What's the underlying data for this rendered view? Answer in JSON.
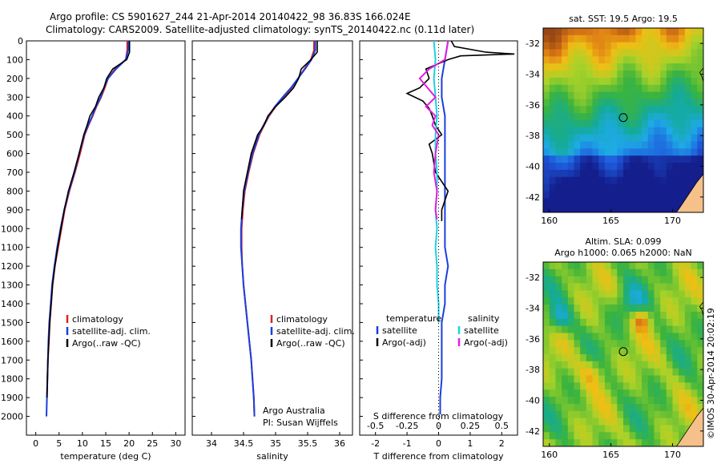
{
  "header": {
    "line1": "Argo profile: CS 5901627_244 21-Apr-2014 20140422_98 36.83S 166.024E",
    "line2": "Climatology: CARS2009. Satellite-adjusted climatology: synTS_20140422.nc (0.11d later)"
  },
  "colors": {
    "climatology": "#e02020",
    "satellite": "#1a3fe0",
    "argo": "#000000",
    "sat_salinity": "#20d0e0",
    "argo_adj_salinity": "#e020e0"
  },
  "chart_data": [
    {
      "type": "line",
      "name": "temperature-profile",
      "xlabel": "temperature (deg C)",
      "ylabel": "",
      "xlim": [
        -2,
        32
      ],
      "ylim": [
        0,
        2100
      ],
      "y_inverted": true,
      "xticks": [
        "0",
        "5",
        "10",
        "15",
        "20",
        "25",
        "30"
      ],
      "yticks": [
        "0",
        "100",
        "200",
        "300",
        "400",
        "500",
        "600",
        "700",
        "800",
        "900",
        "1000",
        "1100",
        "1200",
        "1300",
        "1400",
        "1500",
        "1600",
        "1700",
        "1800",
        "1900",
        "2000"
      ],
      "legend": [
        "climatology",
        "satellite-adj. clim.",
        "Argo(..raw -QC)"
      ],
      "series": [
        {
          "key": "climatology",
          "x": [
            19.6,
            19.6,
            19.3,
            17,
            15.5,
            14.8,
            14,
            13,
            12.2,
            11.3,
            10.5,
            9.5,
            8.4,
            7.2,
            6.2,
            5.5,
            4.8,
            4.1,
            3.6,
            3.3,
            3.0,
            2.8,
            2.6,
            2.5,
            2.4
          ],
          "y": [
            0,
            50,
            100,
            150,
            200,
            250,
            300,
            350,
            400,
            450,
            500,
            600,
            700,
            800,
            900,
            1000,
            1100,
            1200,
            1300,
            1400,
            1500,
            1600,
            1700,
            1800,
            1900
          ]
        },
        {
          "key": "satellite",
          "x": [
            19.9,
            19.8,
            19.3,
            17.2,
            15.5,
            14.6,
            13.9,
            12.9,
            12.1,
            11.2,
            10.4,
            9.3,
            8.3,
            7.1,
            6.1,
            5.3,
            4.6,
            4.0,
            3.5,
            3.2,
            2.9,
            2.7,
            2.6,
            2.5,
            2.4,
            2.3
          ],
          "y": [
            0,
            50,
            100,
            150,
            200,
            250,
            300,
            350,
            400,
            450,
            500,
            600,
            700,
            800,
            900,
            1000,
            1100,
            1200,
            1300,
            1400,
            1500,
            1600,
            1700,
            1800,
            1900,
            2000
          ]
        },
        {
          "key": "argo",
          "x": [
            20.1,
            20.1,
            19.5,
            16.5,
            15.2,
            14.6,
            13.5,
            12.8,
            11.6,
            11.0,
            10.3,
            9.3,
            8.2,
            7.0,
            6.1,
            5.4,
            4.7,
            4.1,
            3.6,
            3.3,
            3.0,
            2.8,
            2.6,
            2.5,
            2.4
          ],
          "y": [
            0,
            60,
            100,
            150,
            200,
            250,
            300,
            350,
            400,
            450,
            500,
            600,
            700,
            800,
            900,
            1000,
            1100,
            1200,
            1300,
            1400,
            1500,
            1600,
            1700,
            1800,
            1900
          ]
        }
      ]
    },
    {
      "type": "line",
      "name": "salinity-profile",
      "xlabel": "salinity",
      "ylabel": "",
      "xlim": [
        33.7,
        36.2
      ],
      "ylim": [
        0,
        2100
      ],
      "y_inverted": true,
      "xticks": [
        "34",
        "34.5",
        "35",
        "35.5",
        "36"
      ],
      "legend": [
        "climatology",
        "satellite-adj. clim.",
        "Argo(..raw -QC)"
      ],
      "annotations": [
        "Argo Australia",
        "PI: Susan Wijffels"
      ],
      "series": [
        {
          "key": "climatology",
          "x": [
            35.6,
            35.6,
            35.55,
            35.45,
            35.35,
            35.25,
            35.12,
            35.0,
            34.9,
            34.82,
            34.75,
            34.65,
            34.58,
            34.52,
            34.49,
            34.47,
            34.47,
            34.48,
            34.5,
            34.53,
            34.56,
            34.59,
            34.62,
            34.64,
            34.66,
            34.67
          ],
          "y": [
            0,
            50,
            100,
            150,
            200,
            250,
            300,
            350,
            400,
            450,
            500,
            600,
            700,
            800,
            900,
            1000,
            1100,
            1200,
            1300,
            1400,
            1500,
            1600,
            1700,
            1800,
            1900,
            2000
          ]
        },
        {
          "key": "satellite",
          "x": [
            35.62,
            35.62,
            35.56,
            35.46,
            35.35,
            35.24,
            35.11,
            34.99,
            34.89,
            34.81,
            34.74,
            34.64,
            34.57,
            34.51,
            34.48,
            34.46,
            34.46,
            34.48,
            34.5,
            34.53,
            34.56,
            34.59,
            34.62,
            34.64,
            34.66,
            34.67
          ],
          "y": [
            0,
            50,
            100,
            150,
            200,
            250,
            300,
            350,
            400,
            450,
            500,
            600,
            700,
            800,
            900,
            1000,
            1100,
            1200,
            1300,
            1400,
            1500,
            1600,
            1700,
            1800,
            1900,
            2000
          ]
        },
        {
          "key": "argo",
          "x": [
            35.65,
            35.65,
            35.55,
            35.4,
            35.36,
            35.28,
            35.15,
            35.0,
            34.88,
            34.82,
            34.72,
            34.62,
            34.56,
            34.5,
            34.48,
            34.47
          ],
          "y": [
            0,
            60,
            100,
            150,
            200,
            250,
            300,
            350,
            400,
            450,
            500,
            600,
            700,
            800,
            900,
            950
          ]
        }
      ]
    },
    {
      "type": "line",
      "name": "difference-profile",
      "xlabel": "T difference from climatology",
      "xlabel_top": "S difference from climatology",
      "xlim": [
        -2.5,
        2.5
      ],
      "ylim": [
        0,
        2100
      ],
      "y_inverted": true,
      "xticks": [
        "-2",
        "-1",
        "0",
        "1",
        "2"
      ],
      "xticks_s": [
        "-0.5",
        "-0.25",
        "0",
        "0.25",
        "0.5"
      ],
      "legend": {
        "temperature": [
          "satellite",
          "Argo(-adj)"
        ],
        "salinity": [
          "satellite",
          "Argo(-adj)"
        ],
        "temperature_title": "temperature",
        "salinity_title": "salinity"
      },
      "series": [
        {
          "key": "satellite",
          "x": [
            0.3,
            0.2,
            0.1,
            0.1,
            0.2,
            0.2,
            0.2,
            0.2,
            0.2,
            0.2,
            0.2,
            0.2,
            0.3,
            0.2,
            0.2,
            0.1,
            0.1,
            0.1,
            0.1,
            0.05,
            0.05
          ],
          "y": [
            0,
            100,
            200,
            300,
            400,
            500,
            600,
            700,
            800,
            900,
            1000,
            1100,
            1200,
            1300,
            1400,
            1500,
            1600,
            1700,
            1800,
            1900,
            1990
          ]
        },
        {
          "key": "argo",
          "x": [
            0.4,
            0.5,
            1.5,
            2.4,
            0.7,
            0.3,
            -0.4,
            -0.3,
            -0.6,
            -1.0,
            -0.5,
            -0.3,
            -0.2,
            -0.1,
            0.1,
            -0.3,
            -0.2,
            -0.1,
            0.3,
            0.1,
            0.1
          ],
          "y": [
            0,
            30,
            60,
            70,
            80,
            100,
            150,
            200,
            250,
            280,
            320,
            360,
            400,
            450,
            500,
            550,
            600,
            700,
            800,
            900,
            960
          ]
        },
        {
          "key": "sat_salinity",
          "x": [
            -0.15,
            -0.1,
            -0.15,
            -0.1,
            -0.05,
            -0.1,
            -0.1,
            -0.05,
            -0.05,
            -0.1,
            -0.05,
            -0.1,
            -0.05,
            -0.05,
            0,
            0
          ],
          "y": [
            0,
            100,
            200,
            300,
            400,
            500,
            600,
            700,
            800,
            900,
            1000,
            1100,
            1200,
            1300,
            1400,
            1500
          ]
        },
        {
          "key": "argo_adj_salinity",
          "x": [
            0.3,
            0.2,
            -0.3,
            -0.6,
            -0.1,
            -0.4,
            -0.1,
            -0.2,
            0,
            -0.1,
            -0.15,
            -0.05,
            -0.1,
            -0.05
          ],
          "y": [
            0,
            100,
            150,
            200,
            300,
            350,
            400,
            450,
            500,
            600,
            700,
            800,
            900,
            950
          ]
        }
      ]
    },
    {
      "type": "heatmap",
      "name": "sst-map",
      "title": "sat. SST: 19.5 Argo: 19.5",
      "xticks": [
        "160",
        "165",
        "170"
      ],
      "yticks": [
        "-32",
        "-34",
        "-36",
        "-38",
        "-40",
        "-42"
      ],
      "xlim": [
        159.5,
        172.5
      ],
      "ylim": [
        -43,
        -31
      ],
      "marker": {
        "lon": 166.0,
        "lat": -36.83
      }
    },
    {
      "type": "heatmap",
      "name": "sla-map",
      "title": "Altim. SLA: 0.099",
      "subtitle": "Argo h1000: 0.065 h2000: NaN",
      "xticks": [
        "160",
        "165",
        "170"
      ],
      "yticks": [
        "-32",
        "-34",
        "-36",
        "-38",
        "-40",
        "-42"
      ],
      "xlim": [
        159.5,
        172.5
      ],
      "ylim": [
        -43,
        -31
      ],
      "marker": {
        "lon": 166.0,
        "lat": -36.83
      }
    }
  ],
  "side_text": "©IMOS 30-Apr-2014 20:02:19"
}
